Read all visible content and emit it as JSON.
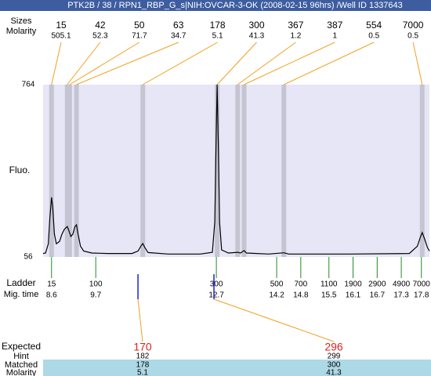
{
  "chart_data": {
    "type": "line",
    "title": "PTK2B / 38 / RPN1_RBP_G_s|NIH:OVCAR-3-OK (2008-02-15 96hrs) /Well ID 1337643",
    "ylabel": "Fluo.",
    "ylim": [
      56,
      764
    ],
    "yticks": [
      56,
      764
    ],
    "xlim": [
      8.39,
      18.0
    ],
    "color": "#000000",
    "x": [
      8.39,
      8.45,
      8.52,
      8.56,
      8.6,
      8.63,
      8.67,
      8.72,
      8.8,
      8.86,
      8.92,
      8.99,
      9.03,
      9.08,
      9.13,
      9.18,
      9.22,
      9.26,
      9.32,
      9.4,
      9.6,
      10.0,
      10.6,
      10.75,
      10.82,
      10.87,
      10.92,
      11.0,
      11.5,
      12.3,
      12.6,
      12.66,
      12.69,
      12.72,
      12.75,
      12.78,
      12.83,
      13.0,
      13.23,
      13.3,
      13.39,
      13.45,
      14.0,
      14.38,
      14.5,
      16.0,
      17.5,
      17.7,
      17.78,
      17.82,
      17.88,
      17.95,
      18.0
    ],
    "values": [
      70,
      72,
      110,
      220,
      301,
      260,
      150,
      110,
      120,
      150,
      170,
      181,
      165,
      140,
      150,
      180,
      188,
      150,
      100,
      80,
      72,
      70,
      70,
      80,
      100,
      111,
      95,
      74,
      68,
      68,
      75,
      200,
      500,
      764,
      500,
      200,
      85,
      72,
      75,
      72,
      82,
      72,
      68,
      73,
      68,
      68,
      70,
      100,
      140,
      156,
      130,
      95,
      80
    ],
    "peaks": {
      "size_label": "Sizes",
      "molarity_label": "Molarity",
      "sizes": [
        15,
        42,
        50,
        63,
        178,
        300,
        367,
        387,
        554,
        7000
      ],
      "molarity": [
        505.1,
        52.3,
        71.7,
        34.7,
        5.1,
        41.3,
        1.2,
        1,
        0.5,
        0.5
      ],
      "times": [
        8.6,
        8.99,
        9.05,
        9.22,
        10.87,
        12.72,
        13.23,
        13.39,
        14.38,
        17.82
      ]
    },
    "ladder": {
      "label": "Ladder",
      "time_label": "Mig. time",
      "sizes": [
        15,
        100,
        300,
        500,
        700,
        1100,
        1900,
        2900,
        4900,
        7000
      ],
      "times": [
        8.6,
        9.7,
        12.7,
        14.2,
        14.8,
        15.5,
        16.1,
        16.7,
        17.3,
        17.8
      ]
    },
    "expected": {
      "label": "Expected",
      "hint_label": "Hint",
      "matched_label": "Matched",
      "molarity_label": "Molarity",
      "expected": [
        170,
        296
      ],
      "hint": [
        182,
        299
      ],
      "matched": [
        178,
        300
      ],
      "molarity": [
        5.1,
        41.3
      ]
    }
  }
}
